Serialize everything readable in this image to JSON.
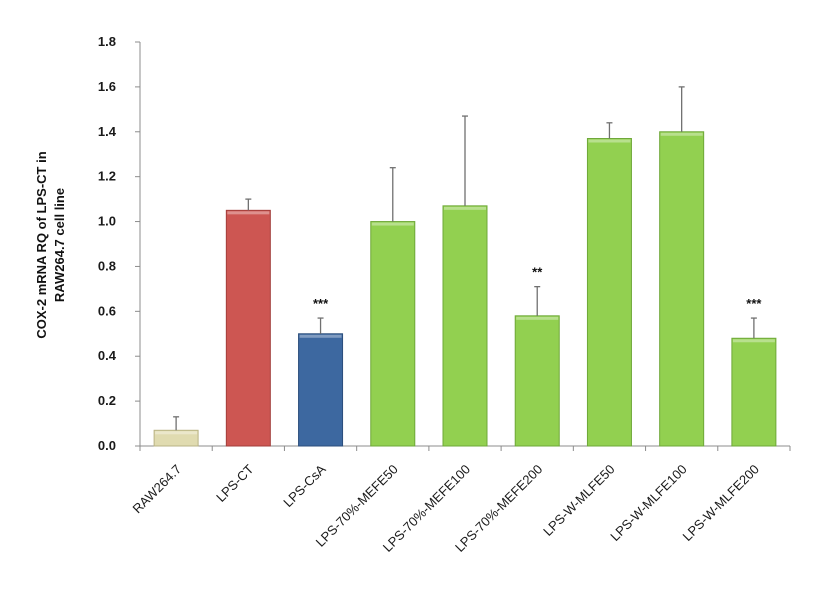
{
  "chart_data": {
    "type": "bar",
    "title": "",
    "xlabel": "",
    "ylabel_lines": [
      "COX-2  mRNA  RQ of  LPS-CT in",
      "RAW264.7 cell line"
    ],
    "ylim": [
      0,
      1.8
    ],
    "yticks": [
      "0.0",
      "0.2",
      "0.4",
      "0.6",
      "0.8",
      "1.0",
      "1.2",
      "1.4",
      "1.6",
      "1.8"
    ],
    "grid": false,
    "legend": "none",
    "categories": [
      "RAW264.7",
      "LPS-CT",
      "LPS-CsA",
      "LPS-70%-MEFE50",
      "LPS-70%-MEFE100",
      "LPS-70%-MEFE200",
      "LPS-W-MLFE50",
      "LPS-W-MLFE100",
      "LPS-W-MLFE200"
    ],
    "values": [
      0.07,
      1.05,
      0.5,
      1.0,
      1.07,
      0.58,
      1.37,
      1.4,
      0.48
    ],
    "errors": [
      0.06,
      0.05,
      0.07,
      0.24,
      0.4,
      0.13,
      0.07,
      0.2,
      0.09
    ],
    "significance": [
      "",
      "",
      "***",
      "",
      "",
      "**",
      "",
      "",
      "***"
    ],
    "colors": [
      "#e0dbb0",
      "#cd5652",
      "#3d68a0",
      "#92d050",
      "#92d050",
      "#92d050",
      "#92d050",
      "#92d050",
      "#92d050"
    ],
    "edge_colors": [
      "#b9b384",
      "#a33e3b",
      "#2b4e7c",
      "#6ea838",
      "#6ea838",
      "#6ea838",
      "#6ea838",
      "#6ea838",
      "#6ea838"
    ]
  }
}
